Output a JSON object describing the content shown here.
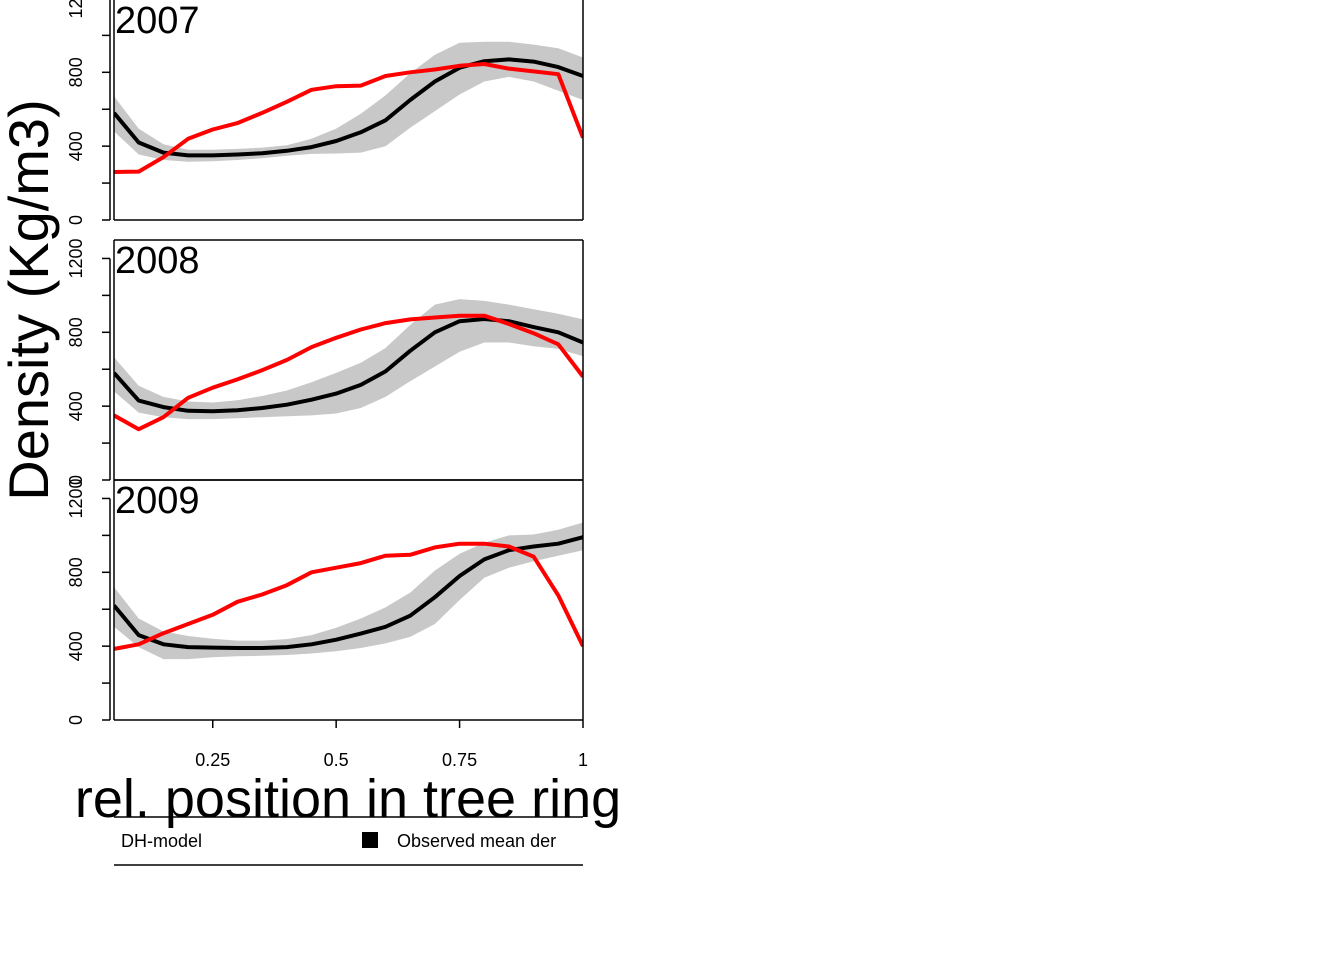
{
  "chart_data": {
    "type": "line",
    "ylabel": "Density (Kg/m3)",
    "xlabel": "rel. position in tree ring",
    "x_ticks": [
      {
        "value": 0.25,
        "label": "0.25"
      },
      {
        "value": 0.5,
        "label": "0.5"
      },
      {
        "value": 0.75,
        "label": "0.75"
      },
      {
        "value": 1.0,
        "label": "1"
      }
    ],
    "y_ticks": [
      {
        "value": 0,
        "label": "0"
      },
      {
        "value": 400,
        "label": "400"
      },
      {
        "value": 800,
        "label": "800"
      },
      {
        "value": 1200,
        "label": "1200"
      }
    ],
    "y_minor_ticks": [
      200,
      600,
      1000
    ],
    "xlim": [
      0.05,
      1.0
    ],
    "ylim": [
      0,
      1300
    ],
    "legend": {
      "position": "bottom",
      "entries": [
        {
          "label": "DH-model",
          "color": "#ff0000"
        },
        {
          "label": "Observed mean der",
          "color": "#000000"
        }
      ]
    },
    "colors": {
      "model": "#ff0000",
      "observed": "#000000",
      "band": "#c8c8c8"
    },
    "x": [
      0.05,
      0.1,
      0.15,
      0.2,
      0.25,
      0.3,
      0.35,
      0.4,
      0.45,
      0.5,
      0.55,
      0.6,
      0.65,
      0.7,
      0.75,
      0.8,
      0.85,
      0.9,
      0.95,
      1.0
    ],
    "panels": [
      {
        "label": "2007",
        "series": [
          {
            "name": "DH-model",
            "values": [
              260,
              262,
              340,
              440,
              490,
              525,
              580,
              640,
              705,
              725,
              728,
              780,
              800,
              815,
              835,
              845,
              820,
              805,
              790,
              445
            ]
          },
          {
            "name": "Observed mean der",
            "values": [
              580,
              420,
              365,
              350,
              350,
              355,
              362,
              375,
              395,
              428,
              475,
              540,
              650,
              750,
              825,
              860,
              870,
              858,
              828,
              780
            ]
          }
        ],
        "band_lower": [
          480,
          355,
          325,
          315,
          318,
          325,
          335,
          348,
          358,
          360,
          365,
          400,
          500,
          590,
          680,
          750,
          775,
          750,
          700,
          650
        ],
        "band_upper": [
          670,
          495,
          410,
          380,
          380,
          385,
          392,
          405,
          440,
          495,
          575,
          675,
          795,
          895,
          960,
          965,
          965,
          950,
          930,
          880
        ]
      },
      {
        "label": "2008",
        "series": [
          {
            "name": "DH-model",
            "values": [
              350,
              275,
              340,
              445,
              500,
              545,
              595,
              650,
              720,
              770,
              815,
              850,
              870,
              880,
              890,
              890,
              845,
              795,
              735,
              560
            ]
          },
          {
            "name": "Observed mean der",
            "values": [
              580,
              430,
              395,
              375,
              372,
              378,
              390,
              408,
              435,
              468,
              515,
              588,
              700,
              800,
              860,
              872,
              860,
              828,
              800,
              745
            ]
          }
        ],
        "band_lower": [
          480,
          365,
          340,
          330,
          330,
          335,
          340,
          345,
          350,
          360,
          390,
          450,
          535,
          615,
          695,
          745,
          745,
          725,
          710,
          670
        ],
        "band_upper": [
          665,
          510,
          450,
          425,
          420,
          432,
          455,
          485,
          530,
          580,
          635,
          715,
          840,
          950,
          980,
          970,
          950,
          925,
          900,
          870
        ]
      },
      {
        "label": "2009",
        "series": [
          {
            "name": "DH-model",
            "values": [
              385,
              410,
              470,
              520,
              570,
              640,
              680,
              730,
              800,
              825,
              850,
              890,
              895,
              935,
              955,
              955,
              940,
              885,
              675,
              400
            ]
          },
          {
            "name": "Observed mean der",
            "values": [
              620,
              460,
              410,
              395,
              392,
              390,
              390,
              395,
              410,
              435,
              468,
              505,
              565,
              665,
              780,
              870,
              920,
              940,
              955,
              990
            ]
          }
        ],
        "band_lower": [
          505,
          395,
          330,
          330,
          340,
          345,
          348,
          352,
          360,
          372,
          390,
          415,
          450,
          520,
          650,
          770,
          825,
          860,
          890,
          920
        ],
        "band_upper": [
          720,
          550,
          480,
          455,
          440,
          430,
          430,
          438,
          460,
          500,
          550,
          610,
          690,
          810,
          900,
          960,
          1000,
          1005,
          1030,
          1070
        ]
      }
    ]
  }
}
